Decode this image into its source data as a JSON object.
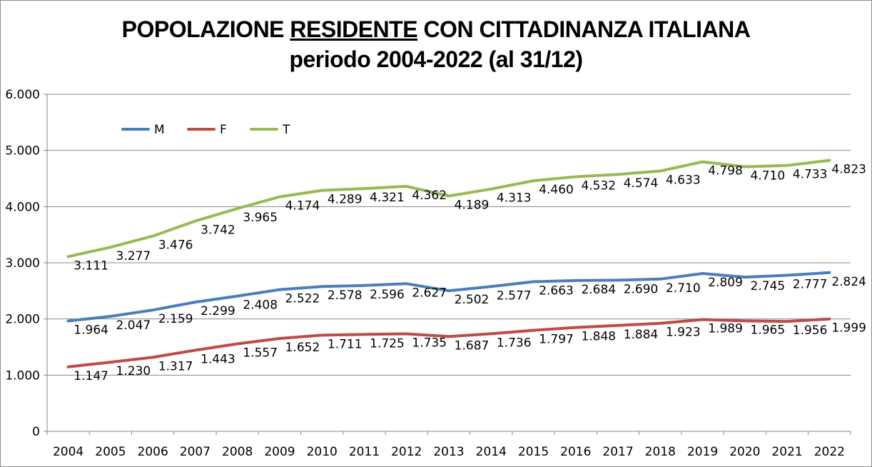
{
  "chart_data": {
    "type": "line",
    "title": {
      "line1_before": "POPOLAZIONE ",
      "line1_underlined": "RESIDENTE",
      "line1_after": " CON CITTADINANZA ITALIANA",
      "line2": "periodo 2004-2022 (al 31/12)"
    },
    "categories": [
      "2004",
      "2005",
      "2006",
      "2007",
      "2008",
      "2009",
      "2010",
      "2011",
      "2012",
      "2013",
      "2014",
      "2015",
      "2016",
      "2017",
      "2018",
      "2019",
      "2020",
      "2021",
      "2022"
    ],
    "ylim": [
      0,
      6000
    ],
    "yticks": [
      0,
      1000,
      2000,
      3000,
      4000,
      5000,
      6000
    ],
    "ytick_labels": [
      "0",
      "1.000",
      "2.000",
      "3.000",
      "4.000",
      "5.000",
      "6.000"
    ],
    "grid": true,
    "legend_position": "top-left",
    "series": [
      {
        "name": "M",
        "color": "#4a7ebb",
        "values": [
          1964,
          2047,
          2159,
          2299,
          2408,
          2522,
          2578,
          2596,
          2627,
          2502,
          2577,
          2663,
          2684,
          2690,
          2710,
          2809,
          2745,
          2777,
          2824
        ],
        "labels": [
          "1.964",
          "2.047",
          "2.159",
          "2.299",
          "2.408",
          "2.522",
          "2.578",
          "2.596",
          "2.627",
          "2.502",
          "2.577",
          "2.663",
          "2.684",
          "2.690",
          "2.710",
          "2.809",
          "2.745",
          "2.777",
          "2.824"
        ]
      },
      {
        "name": "F",
        "color": "#be4b48",
        "values": [
          1147,
          1230,
          1317,
          1443,
          1557,
          1652,
          1711,
          1725,
          1735,
          1687,
          1736,
          1797,
          1848,
          1884,
          1923,
          1989,
          1965,
          1956,
          1999
        ],
        "labels": [
          "1.147",
          "1.230",
          "1.317",
          "1.443",
          "1.557",
          "1.652",
          "1.711",
          "1.725",
          "1.735",
          "1.687",
          "1.736",
          "1.797",
          "1.848",
          "1.884",
          "1.923",
          "1.989",
          "1.965",
          "1.956",
          "1.999"
        ]
      },
      {
        "name": "T",
        "color": "#98b954",
        "values": [
          3111,
          3277,
          3476,
          3742,
          3965,
          4174,
          4289,
          4321,
          4362,
          4189,
          4313,
          4460,
          4532,
          4574,
          4633,
          4798,
          4710,
          4733,
          4823
        ],
        "labels": [
          "3.111",
          "3.277",
          "3.476",
          "3.742",
          "3.965",
          "4.174",
          "4.289",
          "4.321",
          "4.362",
          "4.189",
          "4.313",
          "4.460",
          "4.532",
          "4.574",
          "4.633",
          "4.798",
          "4.710",
          "4.733",
          "4.823"
        ]
      }
    ]
  }
}
